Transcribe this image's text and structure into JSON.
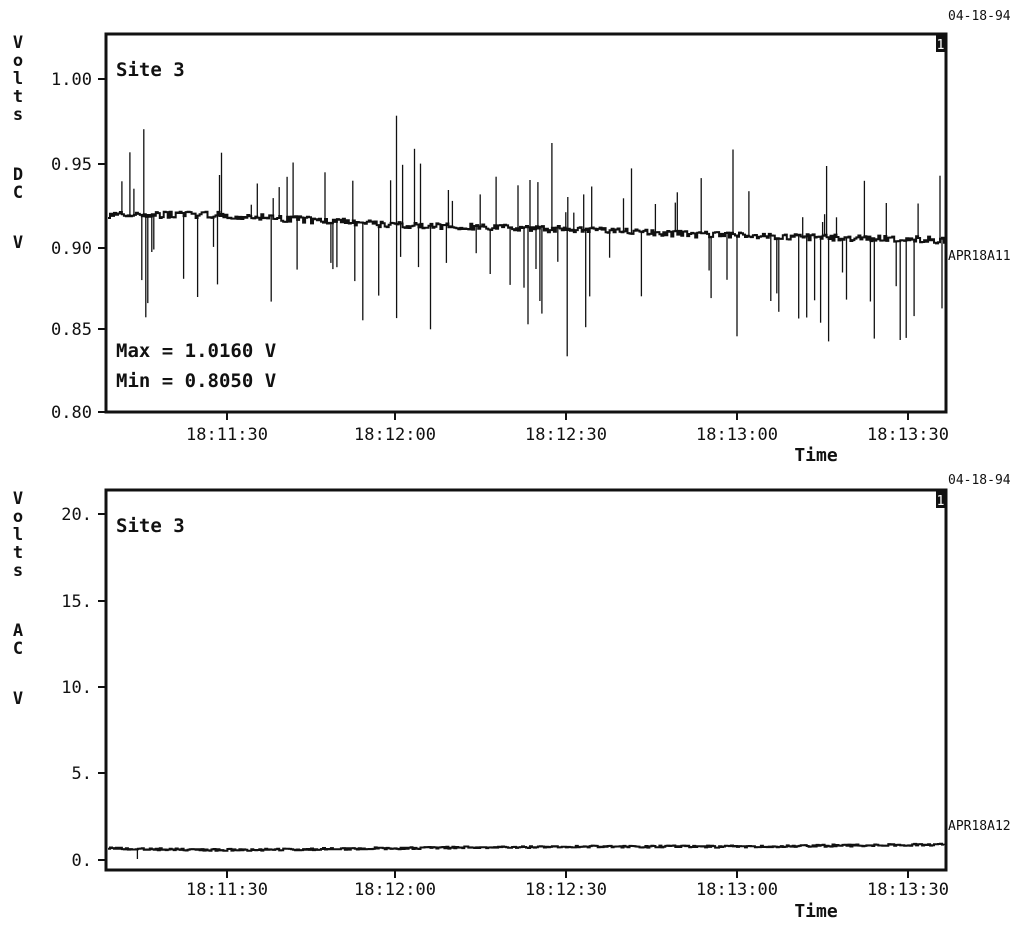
{
  "charts": [
    {
      "date": "04-18-94",
      "corner_marker": "1",
      "site_label": "Site 3",
      "ylabel_chars": [
        "V",
        "o",
        "l",
        "t",
        "s",
        "D",
        "C",
        "V"
      ],
      "ytick_labels": [
        "1.00",
        "0.95",
        "0.90",
        "0.85",
        "0.80"
      ],
      "xtick_labels": [
        "18:11:30",
        "18:12:00",
        "18:12:30",
        "18:13:00",
        "18:13:30"
      ],
      "xlabel": "Time",
      "series_label": "APR18A11",
      "max_text": "Max = 1.0160 V",
      "min_text": "Min = 0.8050 V"
    },
    {
      "date": "04-18-94",
      "corner_marker": "1",
      "site_label": "Site 3",
      "ylabel_chars": [
        "V",
        "o",
        "l",
        "t",
        "s",
        "A",
        "C",
        "V"
      ],
      "ytick_labels": [
        "20.",
        "15.",
        "10.",
        "5.",
        "0."
      ],
      "xtick_labels": [
        "18:11:30",
        "18:12:00",
        "18:12:30",
        "18:13:00",
        "18:13:30"
      ],
      "xlabel": "Time",
      "series_label": "APR18A12"
    }
  ],
  "chart_data": [
    {
      "type": "line",
      "title": "Site 3",
      "ylabel": "Volts DC V",
      "xlabel": "Time",
      "ylim": [
        0.8,
        1.03
      ],
      "xlim": [
        "18:11:12",
        "18:13:34"
      ],
      "xticks": [
        "18:11:30",
        "18:12:00",
        "18:12:30",
        "18:13:00",
        "18:13:30"
      ],
      "yticks": [
        1.0,
        0.95,
        0.9,
        0.85,
        0.8
      ],
      "grid": false,
      "series": [
        {
          "name": "APR18A11",
          "x": [
            "18:11:12",
            "18:11:30",
            "18:12:00",
            "18:12:30",
            "18:13:00",
            "18:13:30",
            "18:13:34"
          ],
          "values": [
            0.92,
            0.92,
            0.914,
            0.911,
            0.907,
            0.905,
            0.904
          ],
          "max": 1.016,
          "min": 0.805
        }
      ]
    },
    {
      "type": "line",
      "title": "Site 3",
      "ylabel": "Volts AC V",
      "xlabel": "Time",
      "ylim": [
        0,
        21
      ],
      "xlim": [
        "18:11:12",
        "18:13:34"
      ],
      "xticks": [
        "18:11:30",
        "18:12:00",
        "18:12:30",
        "18:13:00",
        "18:13:30"
      ],
      "yticks": [
        20,
        15,
        10,
        5,
        0
      ],
      "grid": false,
      "series": [
        {
          "name": "APR18A12",
          "x": [
            "18:11:12",
            "18:11:30",
            "18:12:00",
            "18:12:30",
            "18:13:00",
            "18:13:30",
            "18:13:34"
          ],
          "values": [
            1.1,
            1.0,
            1.1,
            1.2,
            1.2,
            1.3,
            1.3
          ]
        }
      ]
    }
  ]
}
